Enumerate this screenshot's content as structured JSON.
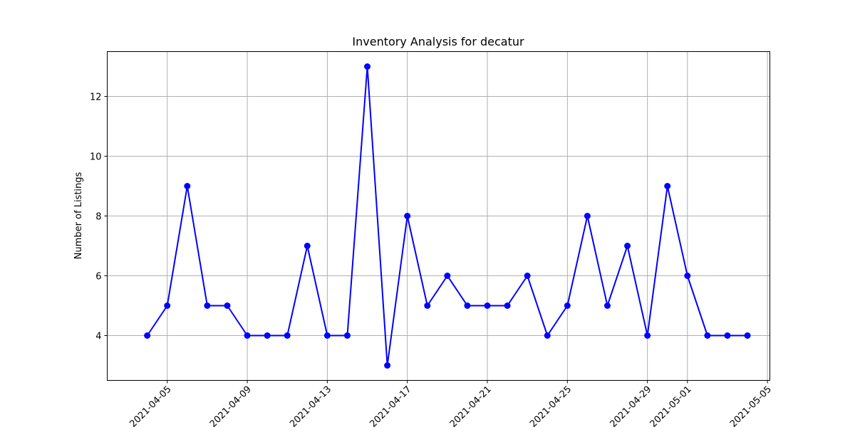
{
  "chart_data": {
    "type": "line",
    "title": "Inventory Analysis for decatur",
    "xlabel": "",
    "ylabel": "Number of Listings",
    "x": [
      "2021-04-04",
      "2021-04-05",
      "2021-04-06",
      "2021-04-07",
      "2021-04-08",
      "2021-04-09",
      "2021-04-10",
      "2021-04-11",
      "2021-04-12",
      "2021-04-13",
      "2021-04-14",
      "2021-04-15",
      "2021-04-16",
      "2021-04-17",
      "2021-04-18",
      "2021-04-19",
      "2021-04-20",
      "2021-04-21",
      "2021-04-22",
      "2021-04-23",
      "2021-04-24",
      "2021-04-25",
      "2021-04-26",
      "2021-04-27",
      "2021-04-28",
      "2021-04-29",
      "2021-04-30",
      "2021-05-01",
      "2021-05-02",
      "2021-05-03",
      "2021-05-04"
    ],
    "series": [
      {
        "values": [
          4,
          5,
          9,
          5,
          5,
          4,
          4,
          4,
          7,
          4,
          4,
          13,
          3,
          8,
          5,
          6,
          5,
          5,
          5,
          6,
          4,
          5,
          8,
          5,
          7,
          4,
          9,
          6,
          4,
          4,
          4
        ],
        "color": "#0000ff",
        "marker": "circle"
      }
    ],
    "xticks": [
      "2021-04-05",
      "2021-04-09",
      "2021-04-13",
      "2021-04-17",
      "2021-04-21",
      "2021-04-25",
      "2021-04-29",
      "2021-05-01",
      "2021-05-05"
    ],
    "yticks": [
      4,
      6,
      8,
      10,
      12
    ],
    "xlim": [
      "2021-04-02",
      "2021-05-05"
    ],
    "ylim": [
      2.5,
      13.5
    ],
    "grid": true,
    "legend": "none"
  }
}
